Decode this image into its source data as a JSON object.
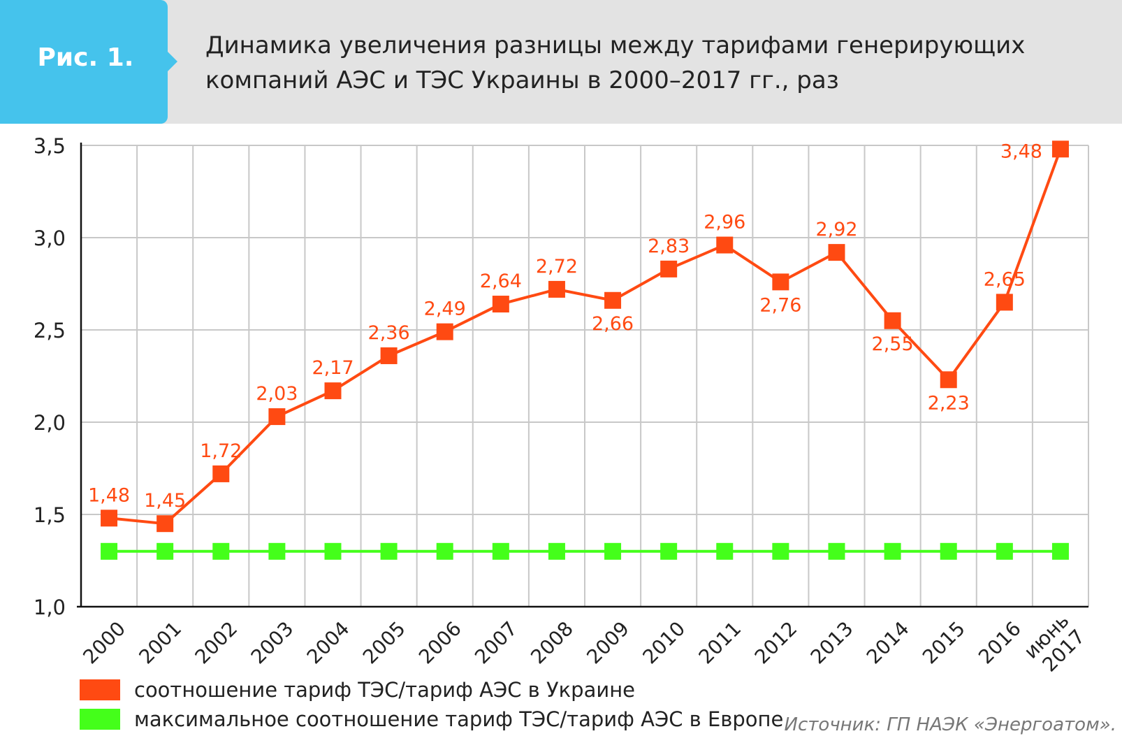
{
  "header": {
    "badge": "Рис. 1.",
    "title_lines": [
      "Динамика увеличения разницы между тарифами генерирующих",
      "компаний АЭС и ТЭС Украины в 2000–2017 гг., раз"
    ]
  },
  "colors": {
    "header_bg": "#e3e3e3",
    "badge_bg": "#45c3ec",
    "ukraine": "#ff4a12",
    "europe": "#44ff1a",
    "grid": "#c8c8c8"
  },
  "chart_data": {
    "type": "line",
    "categories": [
      "2000",
      "2001",
      "2002",
      "2003",
      "2004",
      "2005",
      "2006",
      "2007",
      "2008",
      "2009",
      "2010",
      "2011",
      "2012",
      "2013",
      "2014",
      "2015",
      "2016",
      "июнь\n2017"
    ],
    "ylim": [
      1.0,
      3.5
    ],
    "yticks": [
      "1,0",
      "1,5",
      "2,0",
      "2,5",
      "3,0",
      "3,5"
    ],
    "grid": true,
    "legend_position": "bottom-left",
    "series": [
      {
        "name": "соотношение тариф ТЭС/тариф АЭС в Украине",
        "color": "#ff4a12",
        "values": [
          1.48,
          1.45,
          1.72,
          2.03,
          2.17,
          2.36,
          2.49,
          2.64,
          2.72,
          2.66,
          2.83,
          2.96,
          2.76,
          2.92,
          2.55,
          2.23,
          2.65,
          3.48
        ],
        "labels": [
          "1,48",
          "1,45",
          "1,72",
          "2,03",
          "2,17",
          "2,36",
          "2,49",
          "2,64",
          "2,72",
          "2,66",
          "2,83",
          "2,96",
          "2,76",
          "2,92",
          "2,55",
          "2,23",
          "2,65",
          "3,48"
        ],
        "label_side": [
          "above",
          "above",
          "above",
          "above",
          "above",
          "above",
          "above",
          "above",
          "above",
          "below",
          "above",
          "above",
          "below",
          "above",
          "below",
          "below",
          "above",
          "left"
        ]
      },
      {
        "name": "максимальное соотношение тариф ТЭС/тариф АЭС в Европе",
        "color": "#44ff1a",
        "values": [
          1.3,
          1.3,
          1.3,
          1.3,
          1.3,
          1.3,
          1.3,
          1.3,
          1.3,
          1.3,
          1.3,
          1.3,
          1.3,
          1.3,
          1.3,
          1.3,
          1.3,
          1.3
        ]
      }
    ]
  },
  "source": "Источник:  ГП НАЭК «Энергоатом»."
}
